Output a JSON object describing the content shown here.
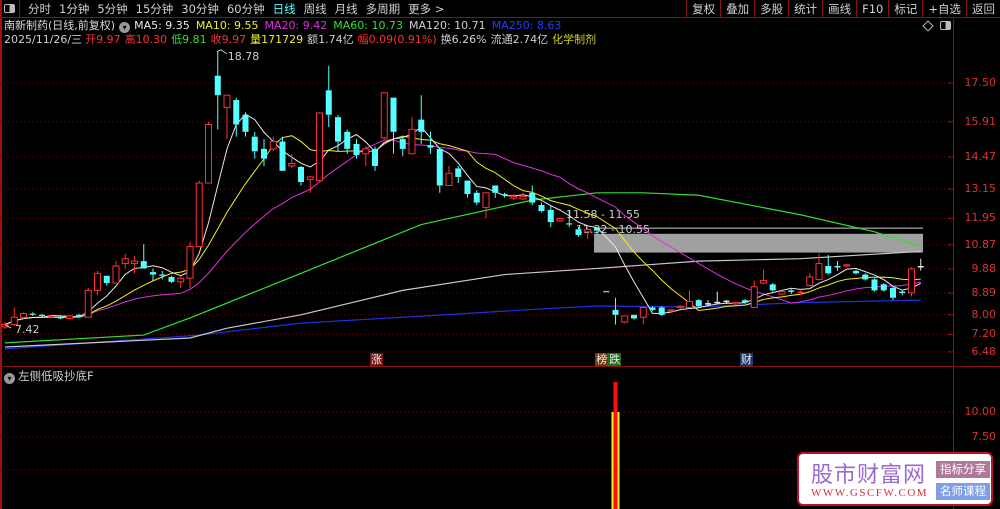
{
  "toolbar": {
    "periods": [
      "分时",
      "1分钟",
      "5分钟",
      "15分钟",
      "30分钟",
      "60分钟",
      "日线",
      "周线",
      "月线",
      "多周期",
      "更多 >"
    ],
    "active_period": "日线",
    "buttons": [
      "复权",
      "叠加",
      "多股",
      "统计",
      "画线",
      "F10",
      "标记",
      "+自选",
      "返回"
    ]
  },
  "info": {
    "name": "南新制药(日线,前复权)",
    "ma": [
      {
        "label": "MA5: 9.35",
        "color": "#e8e8e8"
      },
      {
        "label": "MA10: 9.55",
        "color": "#f0f020"
      },
      {
        "label": "MA20: 9.42",
        "color": "#e030e0"
      },
      {
        "label": "MA60: 10.73",
        "color": "#30e030"
      },
      {
        "label": "MA120: 10.71",
        "color": "#d0d0d0"
      },
      {
        "label": "MA250: 8.63",
        "color": "#2040ff"
      }
    ],
    "quote": [
      {
        "text": "2025/11/26/三",
        "color": "#d0d0d0"
      },
      {
        "text": "开9.97",
        "color": "#ff3030"
      },
      {
        "text": "高10.30",
        "color": "#ff3030"
      },
      {
        "text": "低9.81",
        "color": "#30e030"
      },
      {
        "text": "收9.97",
        "color": "#ff3030"
      },
      {
        "text": "量171729",
        "color": "#f0f020"
      },
      {
        "text": "额1.74亿",
        "color": "#d0d0d0"
      },
      {
        "text": "幅0.09(0.91%)",
        "color": "#ff3030"
      },
      {
        "text": "换6.26%",
        "color": "#d0d0d0"
      },
      {
        "text": "流通2.74亿",
        "color": "#d0d0d0"
      },
      {
        "text": "化学制剂",
        "color": "#d0d020"
      }
    ]
  },
  "chart_data": [
    {
      "type": "candlestick",
      "yticks": [
        "17.50",
        "15.91",
        "14.47",
        "13.15",
        "11.95",
        "10.87",
        "9.88",
        "8.89",
        "8.00",
        "7.20",
        "6.48"
      ],
      "ylim": [
        6.48,
        17.5
      ],
      "grid": true,
      "colors": {
        "up": "#ff3030",
        "down": "#54ffff",
        "ma5": "#e8e8e8",
        "ma10": "#f0f020",
        "ma20": "#e030e0",
        "ma60": "#30e030",
        "ma120": "#c8c8c8",
        "ma250": "#2030e0"
      },
      "candles": [
        [
          7.5,
          7.7,
          7.42,
          7.6
        ],
        [
          7.6,
          8.3,
          7.55,
          7.9
        ],
        [
          7.9,
          8.1,
          7.8,
          8.05
        ],
        [
          8.05,
          8.1,
          7.95,
          8.0
        ],
        [
          8.0,
          8.05,
          7.9,
          7.95
        ],
        [
          7.9,
          8.0,
          7.85,
          7.92
        ],
        [
          7.92,
          7.95,
          7.82,
          7.85
        ],
        [
          7.85,
          8.0,
          7.8,
          7.95
        ],
        [
          8.0,
          8.05,
          7.9,
          7.9
        ],
        [
          7.9,
          9.1,
          7.9,
          9.0
        ],
        [
          9.0,
          9.8,
          8.8,
          9.7
        ],
        [
          9.6,
          9.6,
          9.2,
          9.3
        ],
        [
          9.3,
          10.2,
          9.3,
          10.0
        ],
        [
          10.1,
          10.5,
          9.9,
          10.3
        ],
        [
          10.1,
          10.4,
          9.7,
          10.2
        ],
        [
          10.2,
          10.9,
          9.9,
          9.9
        ],
        [
          9.75,
          9.9,
          9.4,
          9.65
        ],
        [
          9.65,
          9.8,
          9.45,
          9.6
        ],
        [
          9.55,
          9.6,
          9.3,
          9.35
        ],
        [
          9.35,
          9.6,
          9.1,
          9.5
        ],
        [
          9.5,
          11.0,
          9.1,
          10.8
        ],
        [
          10.8,
          13.5,
          10.8,
          13.4
        ],
        [
          13.4,
          15.9,
          13.4,
          15.8
        ],
        [
          17.8,
          18.78,
          15.6,
          17.0
        ],
        [
          16.5,
          17.0,
          15.2,
          17.0
        ],
        [
          16.8,
          16.9,
          15.3,
          15.8
        ],
        [
          16.2,
          16.3,
          15.3,
          15.5
        ],
        [
          15.3,
          15.5,
          14.4,
          14.7
        ],
        [
          14.8,
          15.2,
          14.1,
          14.4
        ],
        [
          14.8,
          15.3,
          14.7,
          15.1
        ],
        [
          15.1,
          15.3,
          13.9,
          13.9
        ],
        [
          14.1,
          14.6,
          14.0,
          14.2
        ],
        [
          14.06,
          14.1,
          13.3,
          13.44
        ],
        [
          13.55,
          13.7,
          13.0,
          13.65
        ],
        [
          13.5,
          16.3,
          13.5,
          16.27
        ],
        [
          17.2,
          18.2,
          15.7,
          16.2
        ],
        [
          16.1,
          16.2,
          14.7,
          15.1
        ],
        [
          15.5,
          15.6,
          14.6,
          14.8
        ],
        [
          15.0,
          15.2,
          14.4,
          14.55
        ],
        [
          14.6,
          14.9,
          14.1,
          14.8
        ],
        [
          14.8,
          14.9,
          13.9,
          14.1
        ],
        [
          15.25,
          17.1,
          15.2,
          17.1
        ],
        [
          16.9,
          16.9,
          14.6,
          15.5
        ],
        [
          15.2,
          15.3,
          14.5,
          14.8
        ],
        [
          14.6,
          16.1,
          14.6,
          15.6
        ],
        [
          16.0,
          17.0,
          15.0,
          15.5
        ],
        [
          14.95,
          15.5,
          14.6,
          14.85
        ],
        [
          14.8,
          14.85,
          13.0,
          13.3
        ],
        [
          13.3,
          14.1,
          13.3,
          13.8
        ],
        [
          14.0,
          14.1,
          13.4,
          13.65
        ],
        [
          13.5,
          13.5,
          12.8,
          12.95
        ],
        [
          13.0,
          13.1,
          12.5,
          12.6
        ],
        [
          12.4,
          13.0,
          11.95,
          13.0
        ],
        [
          13.3,
          13.3,
          12.8,
          13.0
        ],
        [
          12.95,
          13.0,
          12.8,
          12.9
        ],
        [
          12.78,
          12.95,
          12.7,
          12.85
        ],
        [
          12.75,
          13.0,
          12.7,
          12.85
        ],
        [
          13.0,
          13.3,
          12.5,
          12.6
        ],
        [
          12.5,
          12.6,
          12.2,
          12.25
        ],
        [
          12.3,
          12.5,
          11.6,
          11.8
        ],
        [
          11.85,
          12.0,
          11.8,
          11.95
        ],
        [
          11.75,
          12.3,
          11.6,
          11.7
        ],
        [
          11.5,
          11.6,
          11.2,
          11.27
        ],
        [
          11.4,
          11.58,
          11.1,
          11.5
        ],
        [
          11.55,
          11.6,
          11.3,
          11.45
        ],
        null,
        [
          8.2,
          8.7,
          7.6,
          8.0
        ],
        [
          7.7,
          7.95,
          7.65,
          7.95
        ],
        [
          8.0,
          8.0,
          7.8,
          7.85
        ],
        [
          7.9,
          8.3,
          7.6,
          8.3
        ],
        [
          8.3,
          8.35,
          8.15,
          8.2
        ],
        [
          8.3,
          8.35,
          7.95,
          8.0
        ],
        [
          8.15,
          8.25,
          8.1,
          8.2
        ],
        [
          8.3,
          8.4,
          8.25,
          8.35
        ],
        [
          8.3,
          9.0,
          8.3,
          8.55
        ],
        [
          8.6,
          8.65,
          8.3,
          8.35
        ],
        [
          8.45,
          8.6,
          8.35,
          8.45
        ],
        [
          8.5,
          8.95,
          8.45,
          8.5
        ],
        [
          8.55,
          8.6,
          8.45,
          8.55
        ],
        [
          8.45,
          8.55,
          8.4,
          8.5
        ],
        [
          8.6,
          8.65,
          8.45,
          8.5
        ],
        [
          8.3,
          9.4,
          8.3,
          9.15
        ],
        [
          9.3,
          9.85,
          9.25,
          9.4
        ],
        [
          9.25,
          9.3,
          8.95,
          9.0
        ],
        [
          8.85,
          9.0,
          8.8,
          8.95
        ],
        [
          8.97,
          9.05,
          8.85,
          8.95
        ],
        [
          8.88,
          9.0,
          8.8,
          8.92
        ],
        [
          9.2,
          9.7,
          9.15,
          9.55
        ],
        [
          9.45,
          10.5,
          9.4,
          10.1
        ],
        [
          10.0,
          10.45,
          9.65,
          9.7
        ],
        [
          9.97,
          10.2,
          9.8,
          9.95
        ],
        [
          10.0,
          10.1,
          9.95,
          10.05
        ],
        [
          9.8,
          9.85,
          9.65,
          9.7
        ],
        [
          9.65,
          9.7,
          9.4,
          9.45
        ],
        [
          9.45,
          9.5,
          8.95,
          9.0
        ],
        [
          9.25,
          9.3,
          8.95,
          9.0
        ],
        [
          9.1,
          9.15,
          8.6,
          8.7
        ],
        [
          8.92,
          9.0,
          8.8,
          8.9
        ],
        [
          8.9,
          9.95,
          8.75,
          9.88
        ],
        [
          9.97,
          10.3,
          9.81,
          9.97
        ]
      ],
      "gap_marks": [
        {
          "i": 65,
          "v": 8.95
        }
      ],
      "ma60": [
        [
          0,
          6.85
        ],
        [
          15,
          7.17
        ],
        [
          20,
          7.87
        ],
        [
          32,
          9.7
        ],
        [
          45,
          11.7
        ],
        [
          57,
          12.7
        ],
        [
          64,
          13.0
        ],
        [
          69,
          13.0
        ],
        [
          75,
          12.9
        ],
        [
          86,
          12.1
        ],
        [
          94,
          11.4
        ],
        [
          99,
          10.8
        ]
      ],
      "ma120": [
        [
          0,
          6.68
        ],
        [
          20,
          7.05
        ],
        [
          24,
          7.45
        ],
        [
          32,
          8.0
        ],
        [
          43,
          9.0
        ],
        [
          54,
          9.65
        ],
        [
          64,
          9.9
        ],
        [
          75,
          10.2
        ],
        [
          86,
          10.3
        ],
        [
          99,
          10.6
        ]
      ],
      "ma250": [
        [
          0,
          6.6
        ],
        [
          21,
          7.17
        ],
        [
          32,
          7.66
        ],
        [
          43,
          7.9
        ],
        [
          58,
          8.24
        ],
        [
          64,
          8.36
        ],
        [
          75,
          8.32
        ],
        [
          86,
          8.5
        ],
        [
          99,
          8.6
        ]
      ],
      "high_label": {
        "i": 23,
        "text": "18.78",
        "v": 18.78
      },
      "low_label": {
        "i": 0,
        "text": "7.42",
        "v": 7.42
      },
      "zones": [
        {
          "from_i": 64,
          "top": 11.58,
          "bottom": 11.55,
          "label": "11.58 - 11.55"
        },
        {
          "from_i": 64,
          "top": 11.32,
          "bottom": 10.55,
          "label": "11.32 - 10.55"
        }
      ],
      "event_tags": [
        {
          "i": 40,
          "parts": [
            {
              "text": "涨",
              "bg": "#7a1414"
            }
          ]
        },
        {
          "i": 65,
          "parts": [
            {
              "text": "榜",
              "bg": "#6b3c12"
            },
            {
              "text": "跌",
              "bg": "#1e6e1e"
            }
          ]
        },
        {
          "i": 80,
          "parts": [
            {
              "text": "财",
              "bg": "#1a3a6e"
            }
          ]
        }
      ]
    },
    {
      "type": "bar",
      "title": "左侧低吸抄底F",
      "yticks": [
        "10.00",
        "7.50"
      ],
      "bars": [
        {
          "i": 66,
          "value": 10.0,
          "color": "#f0f020"
        },
        {
          "i": 66,
          "value": 13.0,
          "color": "#ff1010"
        }
      ]
    }
  ],
  "watermark": {
    "title": "股市财富网",
    "url": "WWW.GSCFW.COM",
    "badge1": "指标分享",
    "badge2": "名师课程"
  }
}
